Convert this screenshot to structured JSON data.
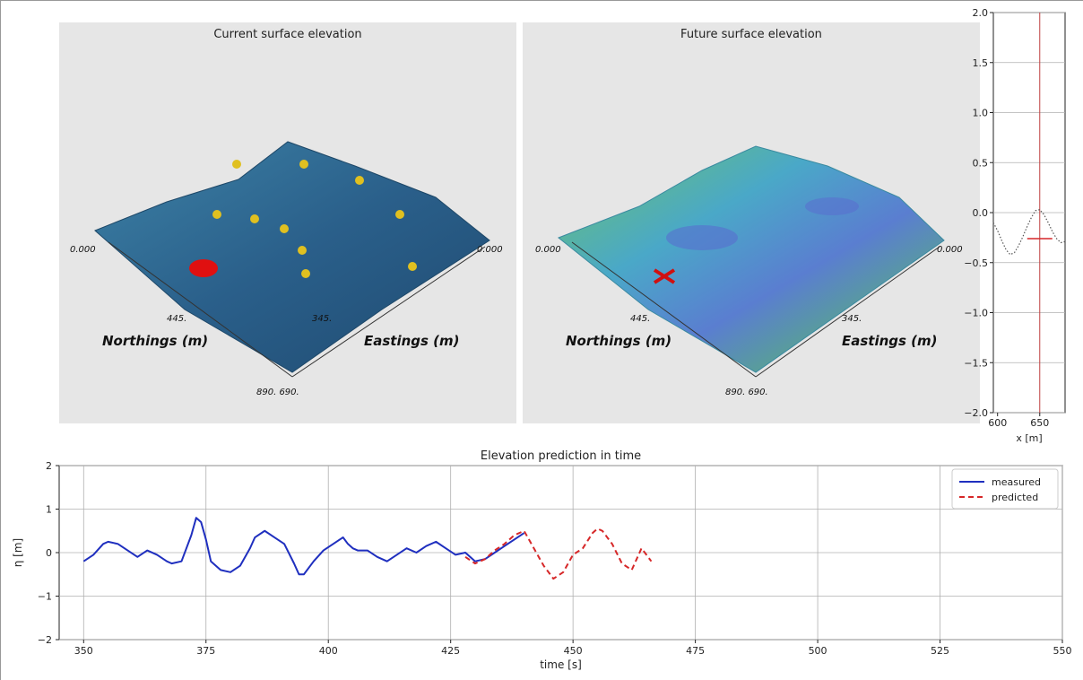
{
  "current_panel": {
    "title": "Current surface elevation",
    "northings_label": "Northings (m)",
    "eastings_label": "Eastings (m)",
    "tick_left_zero": "0.000",
    "tick_right_zero": "0.000",
    "tick_north_mid": "445.",
    "tick_east_mid": "345.",
    "tick_corner": "890. 690."
  },
  "future_panel": {
    "title": "Future surface elevation",
    "northings_label": "Northings (m)",
    "eastings_label": "Eastings (m)",
    "tick_left_zero": "0.000",
    "tick_right_zero": "0.000",
    "tick_north_mid": "445.",
    "tick_east_mid": "345.",
    "tick_corner": "890. 690."
  },
  "colors": {
    "measured": "#1f2fbf",
    "predicted": "#d62728",
    "surface_current": "#2f6a93",
    "surface_future": "#4aa8b8",
    "probe": "#e0c020",
    "target": "#e01010"
  },
  "chart_data": [
    {
      "type": "line",
      "title": "",
      "xlabel": "x [m]",
      "ylabel": "",
      "xlim": [
        595,
        680
      ],
      "ylim": [
        -2.0,
        2.0
      ],
      "xticks": [
        "600",
        "650"
      ],
      "yticks": [
        "2.0",
        "1.5",
        "1.0",
        "0.5",
        "0.0",
        "−0.5",
        "−1.0",
        "−1.5",
        "−2.0"
      ],
      "grid": true,
      "series": [
        {
          "style": "dotted",
          "x": [
            595,
            600,
            605,
            610,
            615,
            620,
            625,
            630,
            635,
            640,
            645,
            650,
            655,
            660,
            665,
            670,
            675,
            680
          ],
          "y": [
            -0.1,
            -0.18,
            -0.28,
            -0.37,
            -0.42,
            -0.4,
            -0.33,
            -0.24,
            -0.14,
            -0.05,
            0.02,
            0.03,
            -0.02,
            -0.1,
            -0.19,
            -0.26,
            -0.3,
            -0.29
          ]
        }
      ],
      "vline_x": 650,
      "marker": {
        "x": 650,
        "y": -0.26
      }
    },
    {
      "type": "line",
      "title": "Elevation prediction in time",
      "xlabel": "time [s]",
      "ylabel": "η [m]",
      "xlim": [
        345,
        550
      ],
      "ylim": [
        -2,
        2
      ],
      "xticks": [
        350,
        375,
        400,
        425,
        450,
        475,
        500,
        525,
        550
      ],
      "yticks": [
        -2,
        -1,
        0,
        1,
        2
      ],
      "grid": true,
      "legend_position": "top-right",
      "series": [
        {
          "name": "measured",
          "style": "solid",
          "x": [
            350,
            352,
            354,
            355,
            357,
            359,
            361,
            363,
            365,
            367,
            368,
            370,
            372,
            373,
            374,
            375,
            376,
            378,
            380,
            382,
            384,
            385,
            387,
            389,
            391,
            393,
            394,
            395,
            397,
            399,
            401,
            403,
            404,
            405,
            406,
            408,
            410,
            412,
            414,
            416,
            418,
            420,
            422,
            424,
            426,
            428,
            430,
            432,
            434,
            436,
            438,
            440
          ],
          "y": [
            -0.2,
            -0.05,
            0.2,
            0.25,
            0.2,
            0.05,
            -0.1,
            0.05,
            -0.05,
            -0.2,
            -0.25,
            -0.2,
            0.4,
            0.8,
            0.7,
            0.3,
            -0.2,
            -0.4,
            -0.45,
            -0.3,
            0.1,
            0.35,
            0.5,
            0.35,
            0.2,
            -0.25,
            -0.5,
            -0.5,
            -0.2,
            0.05,
            0.2,
            0.35,
            0.2,
            0.1,
            0.05,
            0.05,
            -0.1,
            -0.2,
            -0.05,
            0.1,
            0.0,
            0.15,
            0.25,
            0.1,
            -0.05,
            0.0,
            -0.2,
            -0.15,
            0.0,
            0.15,
            0.3,
            0.45
          ]
        },
        {
          "name": "predicted",
          "style": "dashed",
          "x": [
            428,
            430,
            432,
            434,
            436,
            438,
            440,
            442,
            444,
            446,
            448,
            450,
            452,
            454,
            455,
            456,
            458,
            460,
            462,
            464,
            466
          ],
          "y": [
            -0.1,
            -0.25,
            -0.15,
            0.05,
            0.2,
            0.4,
            0.5,
            0.1,
            -0.3,
            -0.6,
            -0.45,
            -0.05,
            0.1,
            0.45,
            0.55,
            0.5,
            0.2,
            -0.25,
            -0.4,
            0.1,
            -0.2
          ]
        }
      ]
    }
  ]
}
